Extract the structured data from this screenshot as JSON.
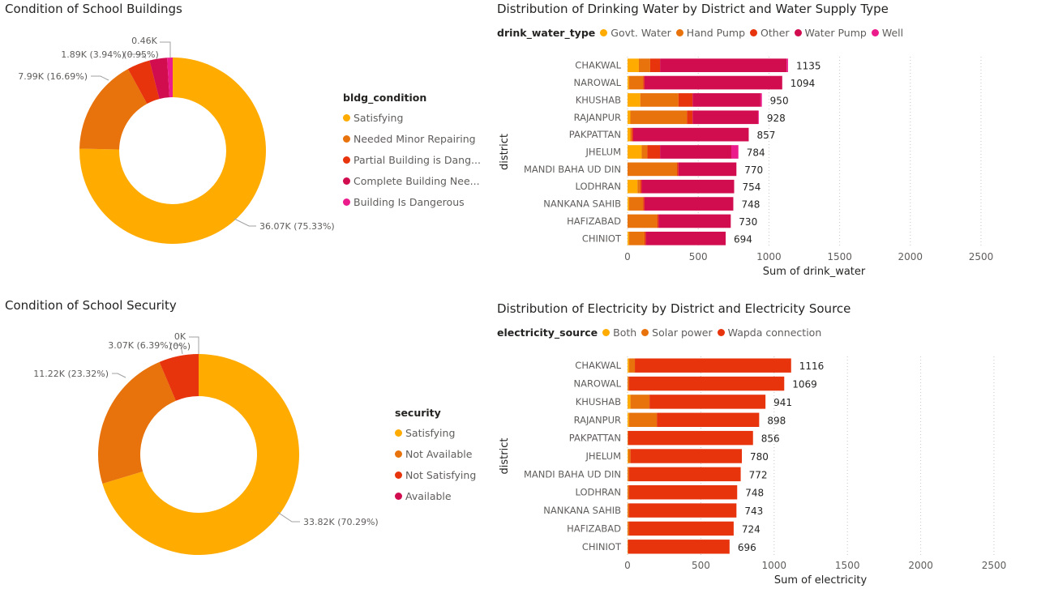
{
  "chart_data": [
    {
      "type": "pie",
      "title": "Condition of School Buildings",
      "legend_title": "bldg_condition",
      "legend_position": "right",
      "slices": [
        {
          "label": "Satisfying",
          "value": 36.07,
          "display": "36.07K (75.33%)",
          "color": "#ffab00"
        },
        {
          "label": "Needed Minor Repairing",
          "value": 7.99,
          "display": "7.99K (16.69%)",
          "color": "#e8730c"
        },
        {
          "label": "Partial Building is Dang...",
          "value": 1.89,
          "display": "1.89K (3.94%)",
          "color": "#e8340c"
        },
        {
          "label": "Complete Building Nee...",
          "value": 1.46,
          "display": "",
          "color": "#d10c4f"
        },
        {
          "label": "Building Is Dangerous",
          "value": 0.46,
          "display": "0.46K (0.95%)",
          "color": "#ec1b8c"
        }
      ]
    },
    {
      "type": "bar",
      "orientation": "horizontal",
      "stacked": true,
      "title": "Distribution of Drinking Water by District and Water Supply Type",
      "legend_title": "drink_water_type",
      "legend_position": "top-left",
      "xlabel": "Sum of drink_water",
      "ylabel": "district",
      "xlim": [
        0,
        2500
      ],
      "xticks": [
        "0",
        "500",
        "1000",
        "1500",
        "2000",
        "2500"
      ],
      "grid": true,
      "categories": [
        "CHAKWAL",
        "NAROWAL",
        "KHUSHAB",
        "RAJANPUR",
        "PAKPATTAN",
        "JHELUM",
        "MANDI BAHA UD DIN",
        "LODHRAN",
        "NANKANA SAHIB",
        "HAFIZABAD",
        "CHINIOT"
      ],
      "totals": [
        1135,
        1094,
        950,
        928,
        857,
        784,
        770,
        754,
        748,
        730,
        694
      ],
      "series": [
        {
          "name": "Govt. Water",
          "color": "#ffab00",
          "values": [
            80,
            10,
            90,
            20,
            20,
            100,
            0,
            70,
            10,
            0,
            10
          ]
        },
        {
          "name": "Hand Pump",
          "color": "#e8730c",
          "values": [
            80,
            100,
            270,
            400,
            10,
            40,
            350,
            20,
            100,
            210,
            110
          ]
        },
        {
          "name": "Other",
          "color": "#e8340c",
          "values": [
            70,
            10,
            100,
            40,
            10,
            90,
            10,
            10,
            10,
            10,
            10
          ]
        },
        {
          "name": "Water Pump",
          "color": "#d10c4f",
          "values": [
            895,
            974,
            480,
            463,
            817,
            504,
            410,
            654,
            628,
            510,
            564
          ]
        },
        {
          "name": "Well",
          "color": "#ec1b8c",
          "values": [
            10,
            0,
            10,
            5,
            0,
            50,
            0,
            0,
            0,
            0,
            0
          ]
        }
      ]
    },
    {
      "type": "pie",
      "title": "Condition of School Security",
      "legend_title": "security",
      "legend_position": "right",
      "slices": [
        {
          "label": "Satisfying",
          "value": 33.82,
          "display": "33.82K (70.29%)",
          "color": "#ffab00"
        },
        {
          "label": "Not Available",
          "value": 11.22,
          "display": "11.22K (23.32%)",
          "color": "#e8730c"
        },
        {
          "label": "Not Satisfying",
          "value": 3.07,
          "display": "3.07K (6.39%)",
          "color": "#e8340c"
        },
        {
          "label": "Available",
          "value": 0,
          "display": "0K (0%)",
          "color": "#d10c4f"
        }
      ]
    },
    {
      "type": "bar",
      "orientation": "horizontal",
      "stacked": true,
      "title": "Distribution of Electricity by District and Electricity Source",
      "legend_title": "electricity_source",
      "legend_position": "top-left",
      "xlabel": "Sum of electricity",
      "ylabel": "district",
      "xlim": [
        0,
        2500
      ],
      "xticks": [
        "0",
        "500",
        "1000",
        "1500",
        "2000",
        "2500"
      ],
      "grid": true,
      "categories": [
        "CHAKWAL",
        "NAROWAL",
        "KHUSHAB",
        "RAJANPUR",
        "PAKPATTAN",
        "JHELUM",
        "MANDI BAHA UD DIN",
        "LODHRAN",
        "NANKANA SAHIB",
        "HAFIZABAD",
        "CHINIOT"
      ],
      "totals": [
        1116,
        1069,
        941,
        898,
        856,
        780,
        772,
        748,
        743,
        724,
        696
      ],
      "series": [
        {
          "name": "Both",
          "color": "#ffab00",
          "values": [
            10,
            0,
            20,
            10,
            0,
            5,
            0,
            0,
            0,
            0,
            0
          ]
        },
        {
          "name": "Solar power",
          "color": "#e8730c",
          "values": [
            40,
            10,
            130,
            190,
            5,
            15,
            10,
            10,
            10,
            10,
            5
          ]
        },
        {
          "name": "Wapda connection",
          "color": "#e8340c",
          "values": [
            1066,
            1059,
            791,
            698,
            851,
            760,
            762,
            738,
            733,
            714,
            691
          ]
        }
      ]
    }
  ]
}
